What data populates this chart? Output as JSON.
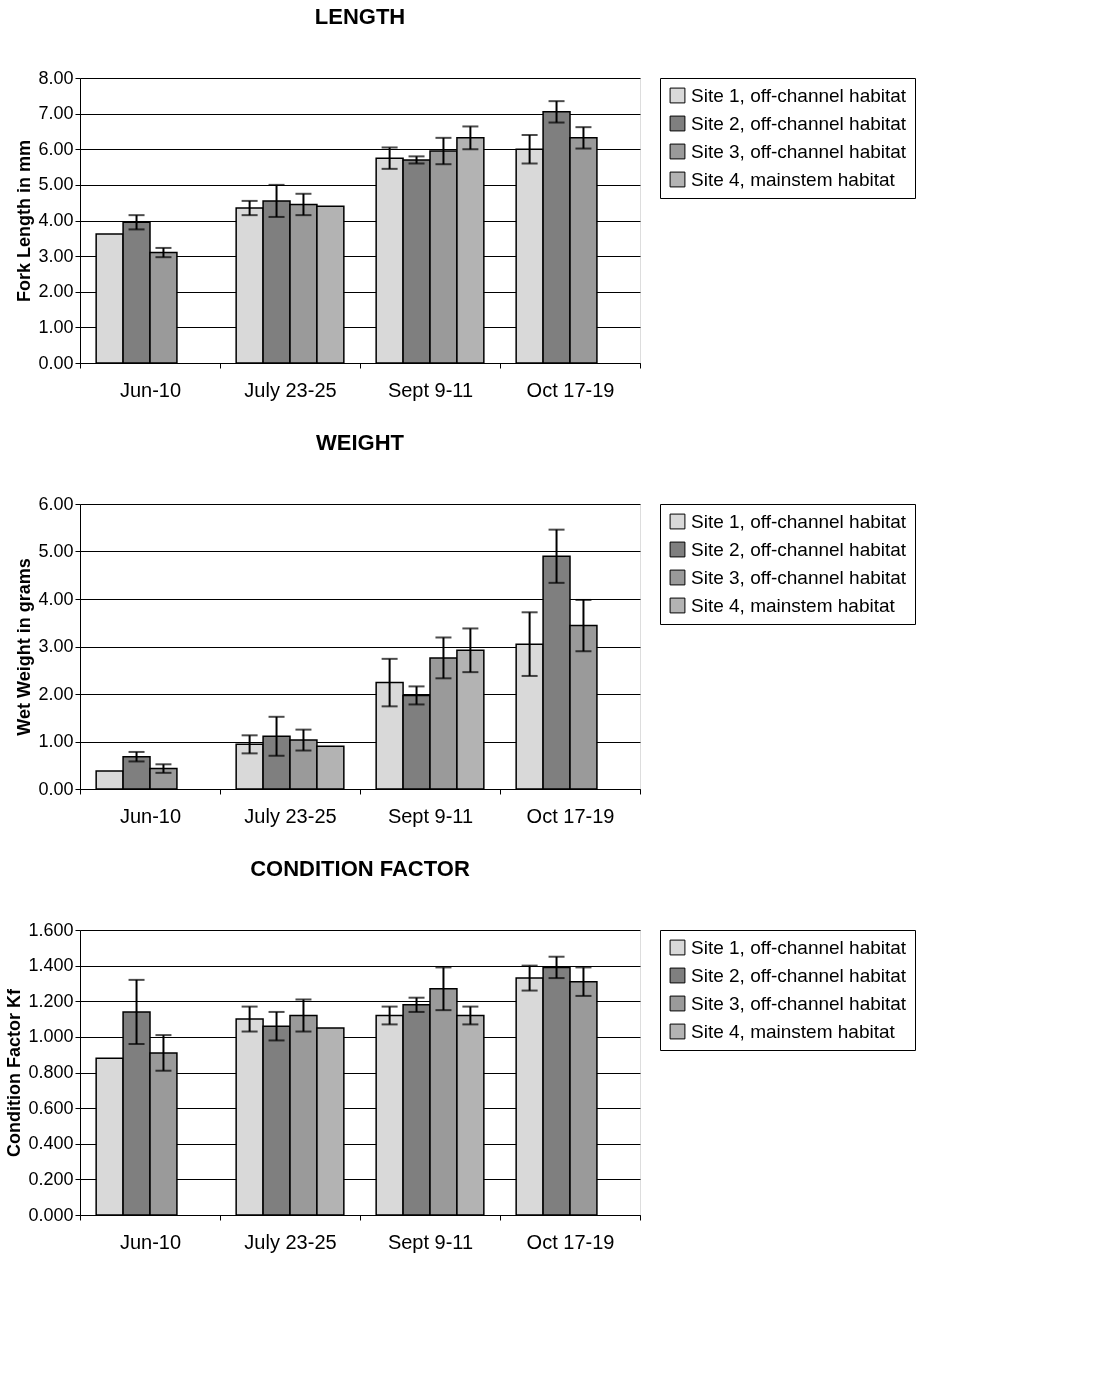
{
  "chart_data": [
    {
      "type": "bar",
      "title": "LENGTH",
      "ylabel": "Fork Length in mm",
      "categories": [
        "Jun-10",
        "July 23-25",
        "Sept 9-11",
        "Oct 17-19"
      ],
      "series": [
        {
          "name": "Site 1, off-channel habitat",
          "color": "#d9d9d9",
          "values": [
            3.62,
            4.35,
            5.75,
            6.0
          ],
          "errors": [
            null,
            0.2,
            0.3,
            0.4
          ]
        },
        {
          "name": "Site 2, off-channel habitat",
          "color": "#7f7f7f",
          "values": [
            3.95,
            4.55,
            5.7,
            7.05
          ],
          "errors": [
            0.2,
            0.45,
            0.1,
            0.3
          ]
        },
        {
          "name": "Site 3, off-channel habitat",
          "color": "#9a9a9a",
          "values": [
            3.1,
            4.45,
            5.95,
            6.32
          ],
          "errors": [
            0.13,
            0.3,
            0.37,
            0.3
          ]
        },
        {
          "name": "Site 4, mainstem habitat",
          "color": "#b3b3b3",
          "values": [
            null,
            4.4,
            6.32,
            null
          ],
          "errors": [
            null,
            null,
            0.32,
            null
          ]
        }
      ],
      "ylim": [
        0,
        8
      ],
      "yticks": [
        {
          "value": 0,
          "label": "0.00"
        },
        {
          "value": 1,
          "label": "1.00"
        },
        {
          "value": 2,
          "label": "2.00"
        },
        {
          "value": 3,
          "label": "3.00"
        },
        {
          "value": 4,
          "label": "4.00"
        },
        {
          "value": 5,
          "label": "5.00"
        },
        {
          "value": 6,
          "label": "6.00"
        },
        {
          "value": 7,
          "label": "7.00"
        },
        {
          "value": 8,
          "label": "8.00"
        }
      ],
      "grid": "y",
      "legend": "right"
    },
    {
      "type": "bar",
      "title": "WEIGHT",
      "ylabel": "Wet Weight in grams",
      "categories": [
        "Jun-10",
        "July 23-25",
        "Sept 9-11",
        "Oct 17-19"
      ],
      "series": [
        {
          "name": "Site 1, off-channel habitat",
          "color": "#d9d9d9",
          "values": [
            0.38,
            0.94,
            2.24,
            3.05
          ],
          "errors": [
            null,
            0.19,
            0.5,
            0.67
          ]
        },
        {
          "name": "Site 2, off-channel habitat",
          "color": "#7f7f7f",
          "values": [
            0.68,
            1.11,
            1.97,
            4.9
          ],
          "errors": [
            0.1,
            0.41,
            0.19,
            0.56
          ]
        },
        {
          "name": "Site 3, off-channel habitat",
          "color": "#9a9a9a",
          "values": [
            0.43,
            1.03,
            2.76,
            3.44
          ],
          "errors": [
            0.09,
            0.22,
            0.43,
            0.54
          ]
        },
        {
          "name": "Site 4, mainstem habitat",
          "color": "#b3b3b3",
          "values": [
            null,
            0.9,
            2.92,
            null
          ],
          "errors": [
            null,
            null,
            0.46,
            null
          ]
        }
      ],
      "ylim": [
        0,
        6
      ],
      "yticks": [
        {
          "value": 0,
          "label": "0.00"
        },
        {
          "value": 1,
          "label": "1.00"
        },
        {
          "value": 2,
          "label": "2.00"
        },
        {
          "value": 3,
          "label": "3.00"
        },
        {
          "value": 4,
          "label": "4.00"
        },
        {
          "value": 5,
          "label": "5.00"
        },
        {
          "value": 6,
          "label": "6.00"
        }
      ],
      "grid": "y",
      "legend": "right"
    },
    {
      "type": "bar",
      "title": "CONDITION FACTOR",
      "ylabel": "Condition Factor Kf",
      "categories": [
        "Jun-10",
        "July 23-25",
        "Sept 9-11",
        "Oct 17-19"
      ],
      "series": [
        {
          "name": "Site 1, off-channel habitat",
          "color": "#d9d9d9",
          "values": [
            0.88,
            1.1,
            1.12,
            1.33
          ],
          "errors": [
            null,
            0.07,
            0.05,
            0.07
          ]
        },
        {
          "name": "Site 2, off-channel habitat",
          "color": "#7f7f7f",
          "values": [
            1.14,
            1.06,
            1.18,
            1.39
          ],
          "errors": [
            0.18,
            0.08,
            0.04,
            0.06
          ]
        },
        {
          "name": "Site 3, off-channel habitat",
          "color": "#9a9a9a",
          "values": [
            0.91,
            1.12,
            1.27,
            1.31
          ],
          "errors": [
            0.1,
            0.09,
            0.12,
            0.08
          ]
        },
        {
          "name": "Site 4, mainstem habitat",
          "color": "#b3b3b3",
          "values": [
            null,
            1.05,
            1.12,
            null
          ],
          "errors": [
            null,
            null,
            0.05,
            null
          ]
        }
      ],
      "ylim": [
        0,
        1.6
      ],
      "yticks": [
        {
          "value": 0,
          "label": "0.000"
        },
        {
          "value": 0.2,
          "label": "0.200"
        },
        {
          "value": 0.4,
          "label": "0.400"
        },
        {
          "value": 0.6,
          "label": "0.600"
        },
        {
          "value": 0.8,
          "label": "0.800"
        },
        {
          "value": 1.0,
          "label": "1.000"
        },
        {
          "value": 1.2,
          "label": "1.200"
        },
        {
          "value": 1.4,
          "label": "1.400"
        },
        {
          "value": 1.6,
          "label": "1.600"
        }
      ],
      "grid": "y",
      "legend": "right"
    }
  ]
}
